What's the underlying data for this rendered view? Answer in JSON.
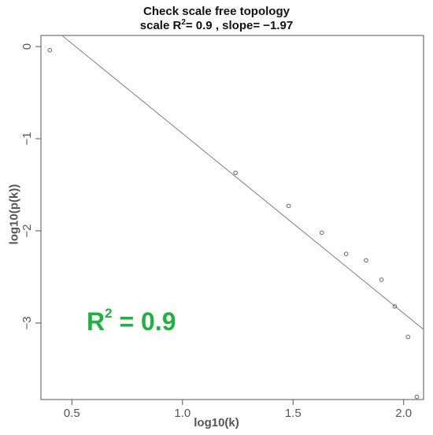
{
  "chart_data": {
    "type": "scatter",
    "title_line1": "Check scale free topology",
    "title_line2": {
      "prefix": "scale R",
      "sup": "2",
      "suffix": "= 0.9 , slope= −1.97"
    },
    "xlabel": "log10(k)",
    "ylabel": "log10(p(k))",
    "xlim": [
      0.36,
      2.09
    ],
    "ylim": [
      -3.83,
      0.12
    ],
    "xticks": [
      {
        "value": 0.5,
        "label": "0.5"
      },
      {
        "value": 1.0,
        "label": "1.0"
      },
      {
        "value": 1.5,
        "label": "1.5"
      },
      {
        "value": 2.0,
        "label": "2.0"
      }
    ],
    "yticks": [
      {
        "value": 0,
        "label": "0"
      },
      {
        "value": -1,
        "label": "−1"
      },
      {
        "value": -2,
        "label": "−2"
      },
      {
        "value": -3,
        "label": "−3"
      }
    ],
    "points": [
      {
        "x": 0.4,
        "y": -0.04
      },
      {
        "x": 1.24,
        "y": -1.37
      },
      {
        "x": 1.48,
        "y": -1.73
      },
      {
        "x": 1.63,
        "y": -2.02
      },
      {
        "x": 1.74,
        "y": -2.25
      },
      {
        "x": 1.83,
        "y": -2.32
      },
      {
        "x": 1.9,
        "y": -2.53
      },
      {
        "x": 1.96,
        "y": -2.82
      },
      {
        "x": 2.02,
        "y": -3.15
      },
      {
        "x": 2.06,
        "y": -3.8
      }
    ],
    "fit_line": {
      "x_start": 0.455,
      "y_start": 0.12,
      "x_end": 2.09,
      "y_end": -3.07
    },
    "annotation": {
      "base": "R",
      "sup": "2",
      "suffix": " = 0.9"
    },
    "colors": {
      "points": "#666666",
      "fit_line": "#888888",
      "axes": "#555555",
      "annotation": "#1db33f"
    },
    "grid": false
  }
}
